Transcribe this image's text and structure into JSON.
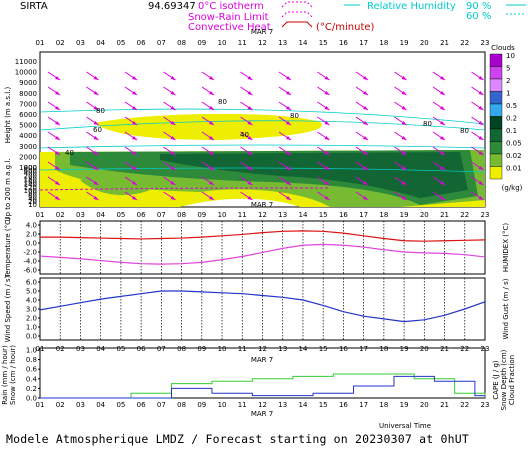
{
  "header": {
    "station": "SIRTA",
    "altitude": "94.69347",
    "isotherm_label": "0°C isotherm",
    "snowrain_label": "Snow-Rain Limit",
    "convective_label": "Convective Heat",
    "convective_unit": "(°C/minute)",
    "rh_label": "Relative Humidity",
    "rh_90": "90 %",
    "rh_60": "60 %",
    "colors": {
      "magenta": "#dd00dd",
      "convective": "#cc0000",
      "humidity": "#00cccc"
    }
  },
  "footer": {
    "text": "Modele Atmospherique LMDZ / Forecast starting on 20230307 at 0hUT"
  },
  "hours": [
    "01",
    "02",
    "03",
    "04",
    "05",
    "06",
    "07",
    "08",
    "09",
    "10",
    "11",
    "12",
    "13",
    "14",
    "15",
    "16",
    "17",
    "18",
    "19",
    "20",
    "21",
    "22",
    "23"
  ],
  "date_label": "MAR  7",
  "time_axis_label": "Universal Time",
  "chart_data": [
    {
      "type": "heatmap",
      "name": "clouds",
      "ylabel": "Height  (m a.s.l.)",
      "ylabel_lower": "Up to 200 m a.g.l.",
      "yticks": [
        "11000",
        "10000",
        "9000",
        "8000",
        "7000",
        "6000",
        "5000",
        "4000",
        "3000",
        "2000",
        "1000",
        "800",
        "600",
        "400",
        "200",
        "180",
        "160",
        "140",
        "120",
        "100",
        "80",
        "60",
        "40",
        "20",
        "10"
      ],
      "yticks_major": [
        "11000",
        "9000",
        "7000",
        "5000",
        "3000",
        "1000"
      ],
      "colorbar": {
        "title": "Clouds",
        "unit": "(g/kg)",
        "labels": [
          "10",
          "5",
          "2",
          "1",
          "0.5",
          "0.2",
          "0.1",
          "0.05",
          "0.02",
          "0.01"
        ],
        "colors": [
          "#aa00cc",
          "#cc44ee",
          "#dd88ff",
          "#3366cc",
          "#33aaee",
          "#004422",
          "#116633",
          "#2d8a3a",
          "#77bb33",
          "#eeee00"
        ]
      },
      "rh_contour_labels": [
        "80",
        "60",
        "40",
        "40",
        "80",
        "80",
        "80",
        "80"
      ],
      "wind_arrows": "magenta arrows pointing down-right at all levels"
    },
    {
      "type": "line",
      "name": "temperature",
      "ylabel": "Temperature (°C)",
      "ylabel_right": "HUMIDEX (°C)",
      "yticks": [
        "4.0",
        "2.0",
        "0.0",
        "-2.0",
        "-4.0",
        "-6.0"
      ],
      "ylim": [
        -6.0,
        4.0
      ],
      "x": [
        1,
        2,
        3,
        4,
        5,
        6,
        7,
        8,
        9,
        10,
        11,
        12,
        13,
        14,
        15,
        16,
        17,
        18,
        19,
        20,
        21,
        22,
        23
      ],
      "series": [
        {
          "color": "#dd1111",
          "values": [
            1.3,
            1.3,
            1.2,
            1.1,
            1.0,
            0.9,
            1.0,
            1.1,
            1.3,
            1.6,
            1.9,
            2.3,
            2.6,
            2.7,
            2.6,
            2.2,
            1.6,
            1.0,
            0.5,
            0.4,
            0.5,
            0.6,
            0.7
          ]
        },
        {
          "color": "#dd44dd",
          "values": [
            -2.9,
            -3.2,
            -3.5,
            -3.9,
            -4.3,
            -4.6,
            -4.7,
            -4.6,
            -4.3,
            -3.7,
            -3.0,
            -2.1,
            -1.2,
            -0.5,
            -0.3,
            -0.5,
            -0.9,
            -1.5,
            -2.0,
            -2.2,
            -2.3,
            -2.6,
            -3.1
          ]
        }
      ]
    },
    {
      "type": "line",
      "name": "wind",
      "ylabel": "Wind Speed (m / s)",
      "ylabel_right": "Wind Gust (m / s)",
      "yticks": [
        "6.0",
        "5.0",
        "4.0",
        "3.0",
        "2.0",
        "1.0",
        "0.0"
      ],
      "ylim": [
        0.0,
        6.0
      ],
      "x": [
        1,
        2,
        3,
        4,
        5,
        6,
        7,
        8,
        9,
        10,
        11,
        12,
        13,
        14,
        15,
        16,
        17,
        18,
        19,
        20,
        21,
        22,
        23
      ],
      "series": [
        {
          "color": "#2233cc",
          "values": [
            2.9,
            3.3,
            3.7,
            4.1,
            4.4,
            4.7,
            5.0,
            5.0,
            4.9,
            4.8,
            4.7,
            4.5,
            4.3,
            4.0,
            3.4,
            2.7,
            2.2,
            1.9,
            1.6,
            1.8,
            2.3,
            3.0,
            3.8
          ]
        }
      ]
    },
    {
      "type": "bar",
      "name": "precipitation",
      "ylabel": "Rain (mm / hour)",
      "ylabel2": "Snow (cm / hour)",
      "ylabel_right": [
        "CAPE (J / g)",
        "Snow Depth (cm)",
        "Cloud Fraction"
      ],
      "yticks": [
        "1.0",
        "0.8",
        "0.6",
        "0.4",
        "0.2",
        "0.0"
      ],
      "ylim": [
        0.0,
        1.0
      ],
      "x": [
        1,
        2,
        3,
        4,
        5,
        6,
        7,
        8,
        9,
        10,
        11,
        12,
        13,
        14,
        15,
        16,
        17,
        18,
        19,
        20,
        21,
        22,
        23
      ],
      "series": [
        {
          "color": "#33cc33",
          "values": [
            0,
            0,
            0,
            0,
            0,
            0.1,
            0.1,
            0.3,
            0.3,
            0.35,
            0.35,
            0.4,
            0.4,
            0.45,
            0.45,
            0.5,
            0.5,
            0.5,
            0.5,
            0.4,
            0.4,
            0.1,
            0.1
          ]
        },
        {
          "color": "#2233cc",
          "values": [
            0,
            0,
            0,
            0,
            0,
            0,
            0,
            0.2,
            0.2,
            0.1,
            0.1,
            0.05,
            0.05,
            0.05,
            0.1,
            0.1,
            0.25,
            0.25,
            0.45,
            0.45,
            0.35,
            0.35,
            0.05
          ]
        }
      ]
    }
  ]
}
